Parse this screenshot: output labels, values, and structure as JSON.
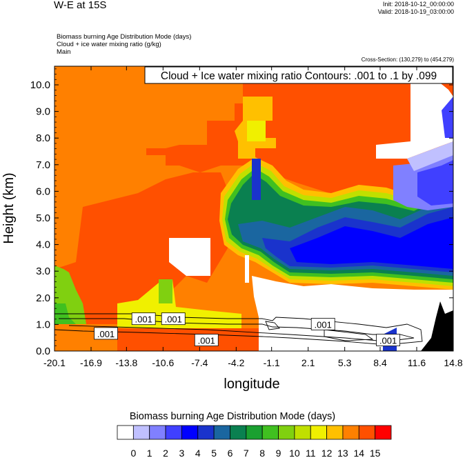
{
  "header": {
    "title": "W-E at 15S",
    "init": "Init: 2018-10-12_00:00:00",
    "valid": "Valid: 2018-10-19_03:00:00"
  },
  "meta": {
    "line1": "Biomass burning Age Distribution Mode   (days)",
    "line2": "Cloud + ice water mixing ratio   (g/kg)",
    "line3": "Main",
    "cross_section": "Cross-Section: (130,279) to (454,279)"
  },
  "chart_data": {
    "type": "heatmap",
    "contour_title": "Cloud + Ice water mixing ratio Contours: .001 to .1 by .099",
    "xlabel": "longitude",
    "ylabel": "Height (km)",
    "x_ticks": [
      "-20.1",
      "-16.9",
      "-13.8",
      "-10.6",
      "-7.4",
      "-4.2",
      "-1.1",
      "2.1",
      "5.3",
      "8.4",
      "11.6",
      "14.8"
    ],
    "y_ticks": [
      "0.0",
      "1.0",
      "2.0",
      "3.0",
      "4.0",
      "5.0",
      "6.0",
      "7.0",
      "8.0",
      "9.0",
      "10.0"
    ],
    "xlim": [
      -20.1,
      14.8
    ],
    "ylim": [
      0.0,
      10.7
    ],
    "contour_labels": [
      {
        "text": ".001",
        "lon": -15.6,
        "h": 0.65
      },
      {
        "text": ".001",
        "lon": -12.3,
        "h": 1.2
      },
      {
        "text": ".001",
        "lon": -9.7,
        "h": 1.2
      },
      {
        "text": ".001",
        "lon": -6.8,
        "h": 0.4
      },
      {
        "text": ".001",
        "lon": 3.4,
        "h": 1.0
      },
      {
        "text": ".001",
        "lon": 9.1,
        "h": 0.4
      }
    ],
    "colorbar": {
      "title": "Biomass burning Age Distribution Mode  (days)",
      "labels": [
        "0",
        "1",
        "2",
        "3",
        "4",
        "5",
        "6",
        "7",
        "8",
        "9",
        "10",
        "11",
        "12",
        "13",
        "14",
        "15"
      ],
      "colors": [
        "#ffffff",
        "#c0c0ff",
        "#8080ff",
        "#4040ff",
        "#0000ff",
        "#1a33cc",
        "#1a66a0",
        "#0a8050",
        "#1aa030",
        "#40c020",
        "#80d010",
        "#c0e000",
        "#f0f000",
        "#ffc000",
        "#ff8000",
        "#ff5000",
        "#ff0000"
      ]
    },
    "regions": [
      {
        "name": "upper-west",
        "age_days": 14,
        "lon": [
          -20.1,
          -12.0
        ],
        "h": [
          6.0,
          10.7
        ]
      },
      {
        "name": "upper-east",
        "age_days": 15,
        "lon": [
          -7.5,
          14.8
        ],
        "h": [
          6.0,
          10.7
        ]
      },
      {
        "name": "high-yellow-patch",
        "age_days": 13,
        "lon": [
          -3.0,
          1.7
        ],
        "h": [
          7.8,
          9.2
        ]
      },
      {
        "name": "mid-green-core",
        "age_days": 7,
        "lon": [
          -3.5,
          5.0
        ],
        "h": [
          3.5,
          6.0
        ]
      },
      {
        "name": "mid-blue-core",
        "age_days": 4,
        "lon": [
          2.0,
          9.5
        ],
        "h": [
          2.8,
          5.0
        ]
      },
      {
        "name": "eastern-clean",
        "age_days": 0,
        "lon": [
          12.0,
          14.8
        ],
        "h": [
          8.5,
          10.7
        ]
      },
      {
        "name": "low-clean",
        "age_days": 0,
        "lon": [
          -2.0,
          5.0
        ],
        "h": [
          0.0,
          2.2
        ]
      },
      {
        "name": "surface-west-green",
        "age_days": 11,
        "lon": [
          -20.1,
          -18.1
        ],
        "h": [
          0.0,
          2.1
        ]
      },
      {
        "name": "boundary-layer-yellow",
        "age_days": 12,
        "lon": [
          -11.5,
          -4.5
        ],
        "h": [
          0.7,
          1.5
        ]
      }
    ]
  }
}
